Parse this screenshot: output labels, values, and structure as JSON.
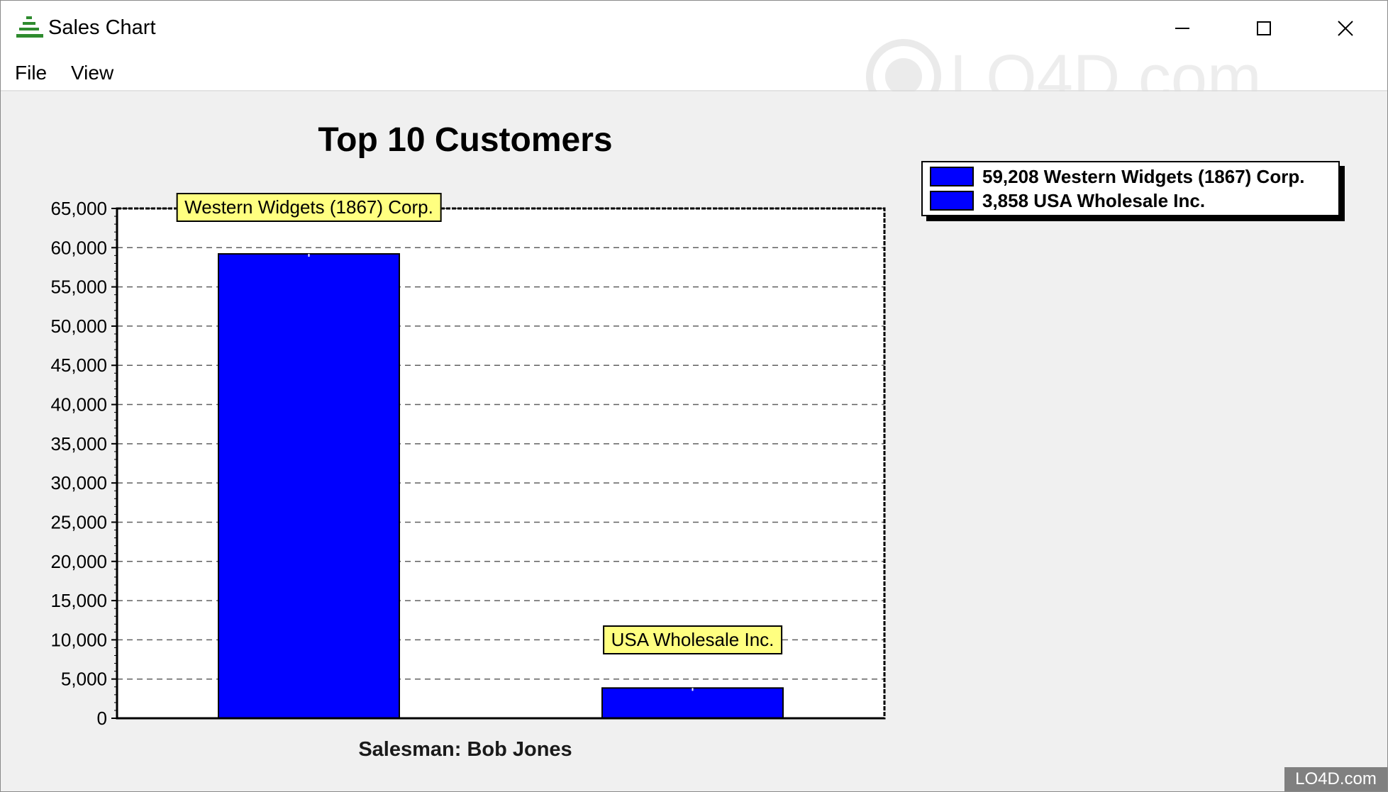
{
  "window": {
    "title": "Sales Chart",
    "icon": "tree-stack-icon",
    "controls": [
      "minimize-icon",
      "maximize-icon",
      "close-icon"
    ]
  },
  "menu": {
    "items": [
      {
        "label": "File"
      },
      {
        "label": "View"
      }
    ]
  },
  "watermark_text": "LO4D.com",
  "chart_data": {
    "type": "bar",
    "title": "Top 10 Customers",
    "xlabel": "Salesman: Bob Jones",
    "ylabel": "",
    "categories": [
      "Western Widgets (1867) Corp.",
      "USA Wholesale Inc."
    ],
    "values": [
      59208,
      3858
    ],
    "ylim": [
      0,
      65000
    ],
    "yticks": [
      0,
      5000,
      10000,
      15000,
      20000,
      25000,
      30000,
      35000,
      40000,
      45000,
      50000,
      55000,
      60000,
      65000
    ],
    "ytick_labels": [
      "0",
      "5,000",
      "10,000",
      "15,000",
      "20,000",
      "25,000",
      "30,000",
      "35,000",
      "40,000",
      "45,000",
      "50,000",
      "55,000",
      "60,000",
      "65,000"
    ],
    "grid": "horizontal dashed",
    "legend_placement": "top-right",
    "legend": [
      {
        "text": "59,208 Western Widgets (1867) Corp.",
        "color": "#0000ff"
      },
      {
        "text": "3,858 USA Wholesale Inc.",
        "color": "#0000ff"
      }
    ],
    "bar_color": "#0000ff",
    "label_color": "#ffff80"
  }
}
